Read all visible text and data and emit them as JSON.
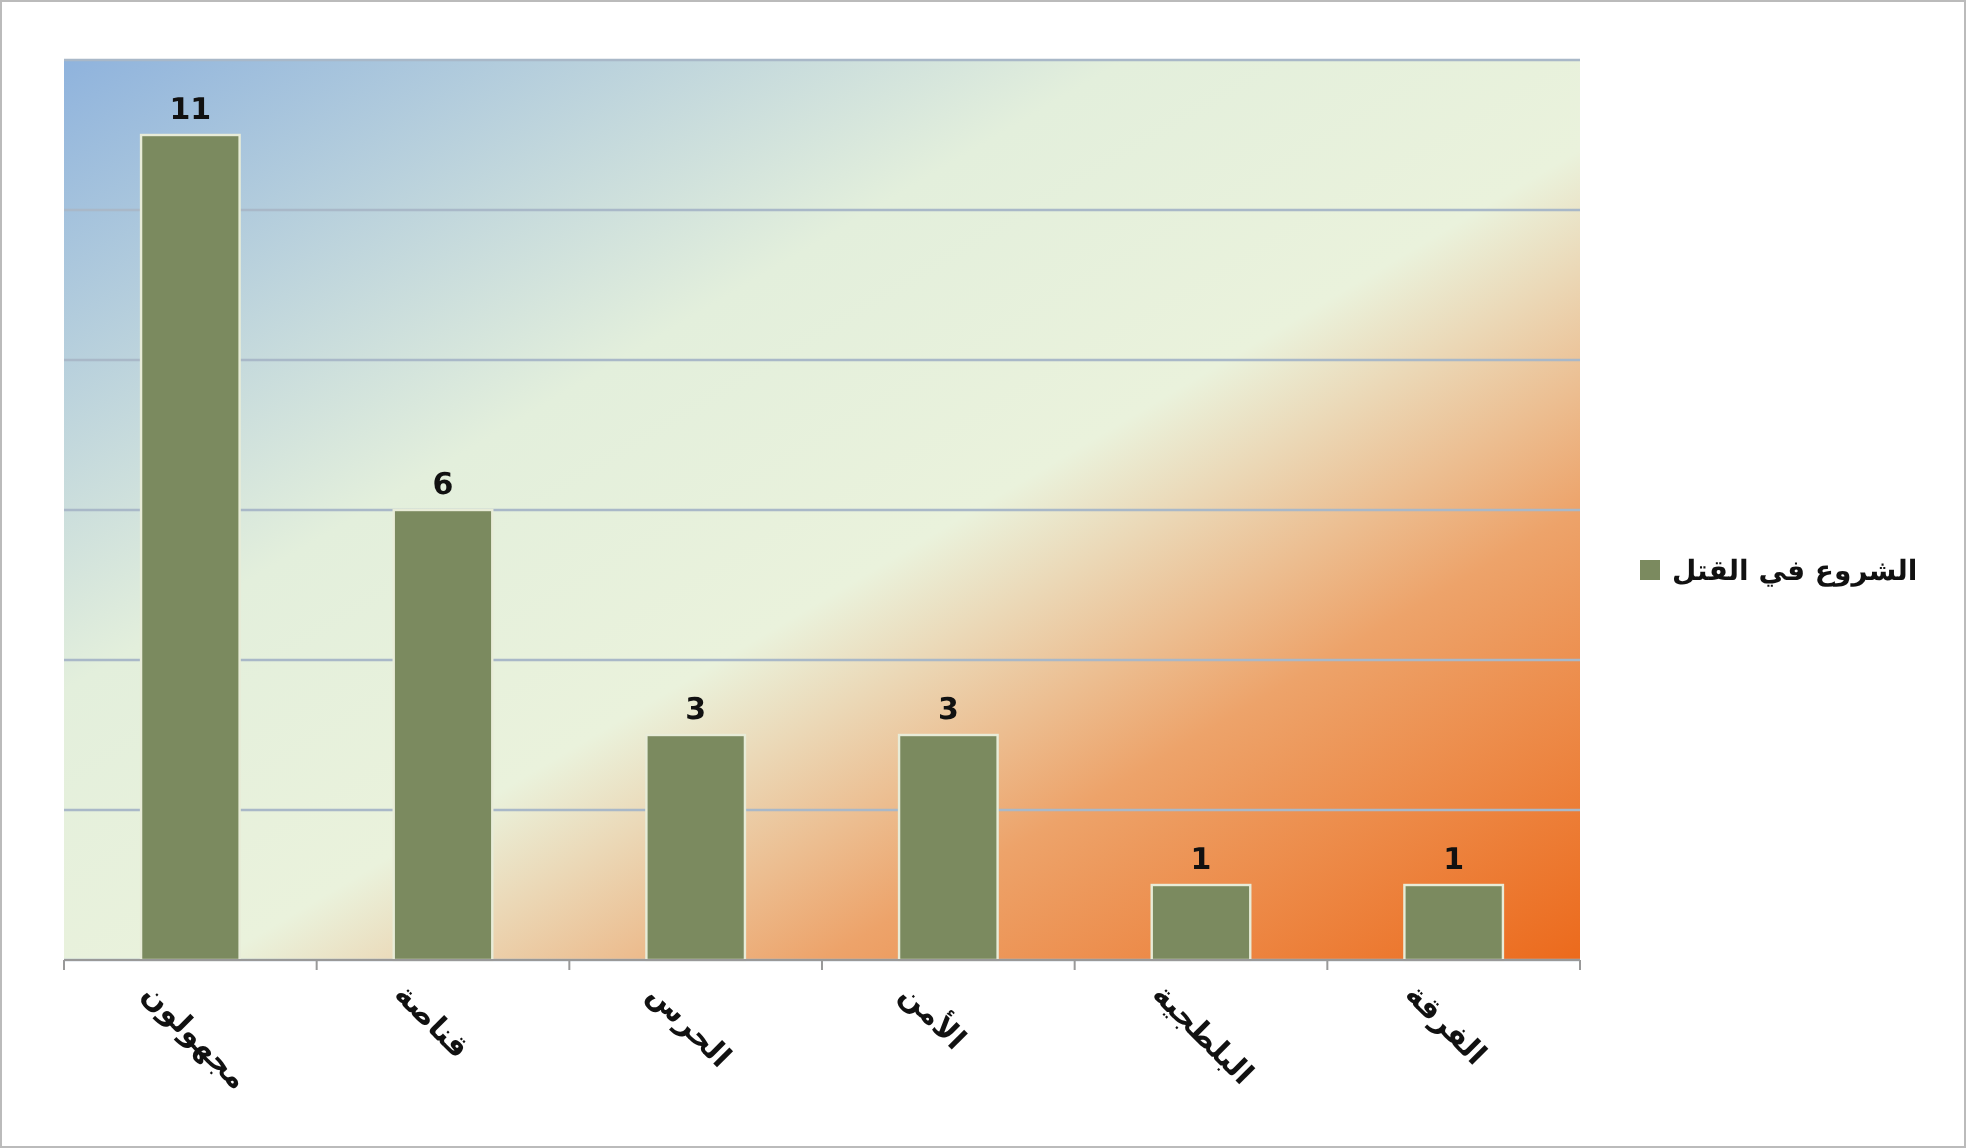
{
  "chart_data": {
    "type": "bar",
    "categories": [
      "مجهولون",
      "قناصة",
      "الحرس",
      "الأمن",
      "البلطجية",
      "الفرقة"
    ],
    "series": [
      {
        "name": "الشروع في القتل",
        "color": "#7b8a5f",
        "values": [
          11,
          6,
          3,
          3,
          1,
          1
        ]
      }
    ],
    "ylim": [
      0,
      12
    ],
    "yticks": [
      {
        "value": 0,
        "label": null
      },
      {
        "value": 2,
        "label": null
      },
      {
        "value": 4,
        "label": null
      },
      {
        "value": 6,
        "label": null
      },
      {
        "value": 8,
        "label": null
      },
      {
        "value": 10,
        "label": null
      },
      {
        "value": 12,
        "label": null
      }
    ],
    "grid": "y",
    "tick_labels": "x",
    "legend": "right",
    "data_labels": true
  }
}
